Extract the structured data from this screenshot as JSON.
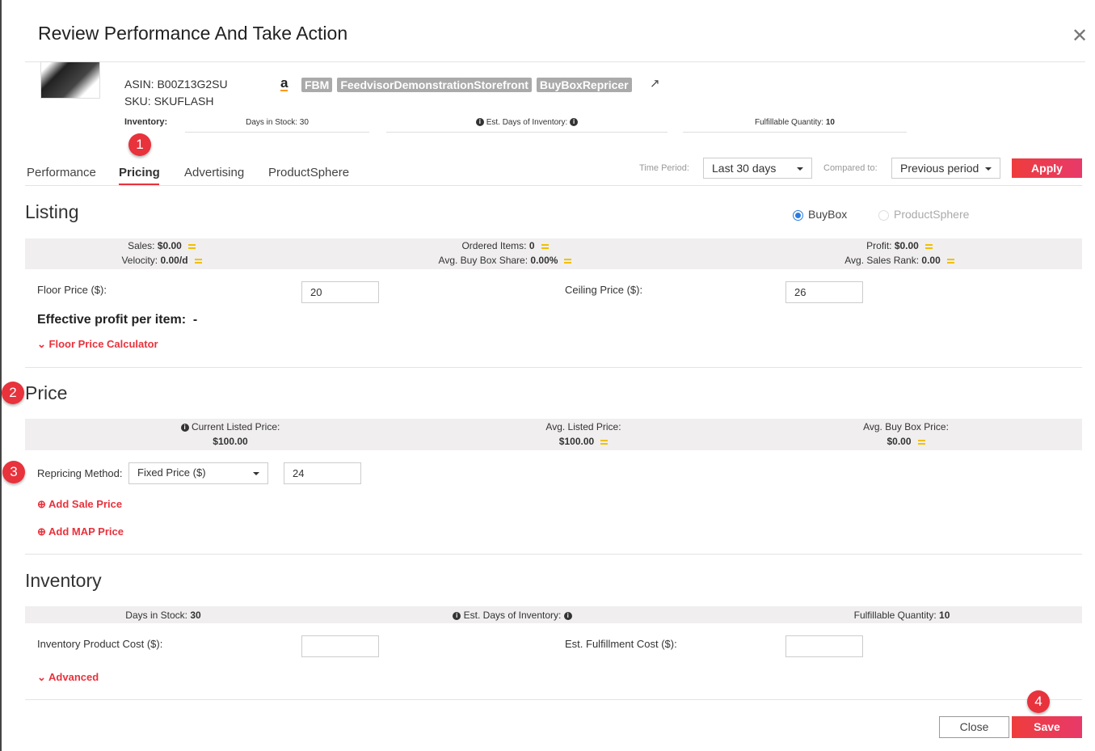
{
  "dialog": {
    "title": "Review Performance And Take Action"
  },
  "product": {
    "asin": "ASIN: B00Z13G2SU",
    "sku": "SKU: SKUFLASH",
    "badges": [
      "FBM",
      "FeedvisorDemonstrationStorefront",
      "BuyBoxRepricer"
    ],
    "amazon_glyph": "a"
  },
  "header_inventory": {
    "label": "Inventory:",
    "days_in_stock": "Days in Stock: 30",
    "est_days": "Est. Days of Inventory:",
    "fulfillable": "Fulfillable Quantity:",
    "fulfillable_value": "10"
  },
  "steps": [
    "1",
    "2",
    "3",
    "4"
  ],
  "tabs": [
    {
      "label": "Performance"
    },
    {
      "label": "Pricing",
      "active": true
    },
    {
      "label": "Advertising"
    },
    {
      "label": "ProductSphere"
    }
  ],
  "filters": {
    "time_period_label": "Time Period:",
    "time_period_value": "Last 30 days",
    "compared_label": "Compared to:",
    "compared_value": "Previous period",
    "apply": "Apply"
  },
  "listing": {
    "title": "Listing",
    "radio_options": [
      {
        "label": "BuyBox",
        "selected": true
      },
      {
        "label": "ProductSphere",
        "selected": false
      }
    ],
    "stats": [
      {
        "label": "Sales:",
        "value": "$0.00"
      },
      {
        "label": "Ordered Items:",
        "value": "0"
      },
      {
        "label": "Profit:",
        "value": "$0.00"
      },
      {
        "label": "Velocity:",
        "value": "0.00/d"
      },
      {
        "label": "Avg. Buy Box Share:",
        "value": "0.00%"
      },
      {
        "label": "Avg. Sales Rank:",
        "value": "0.00"
      }
    ],
    "floor_label": "Floor Price ($):",
    "floor_value": "20",
    "ceiling_label": "Ceiling Price ($):",
    "ceiling_value": "26",
    "effective_profit": "Effective profit per item:  -",
    "calculator": "Floor Price Calculator"
  },
  "price": {
    "title": "Price",
    "stats": [
      {
        "label": "Current Listed Price:",
        "value": "$100.00"
      },
      {
        "label": "Avg. Listed Price:",
        "value": "$100.00"
      },
      {
        "label": "Avg. Buy Box Price:",
        "value": "$0.00"
      }
    ],
    "method_label": "Repricing Method:",
    "method_value": "Fixed Price ($)",
    "method_amount": "24",
    "add_sale": "Add Sale Price",
    "add_map": "Add MAP Price"
  },
  "inventory": {
    "title": "Inventory",
    "days_in_stock_label": "Days in Stock:",
    "days_in_stock": "30",
    "est_days": "Est. Days of Inventory:",
    "fulfillable_label": "Fulfillable Quantity:",
    "fulfillable": "10",
    "product_cost_label": "Inventory Product Cost ($):",
    "product_cost": "",
    "fulfillment_cost_label": "Est. Fulfillment Cost ($):",
    "fulfillment_cost": "",
    "advanced": "Advanced"
  },
  "footer": {
    "close": "Close",
    "save": "Save"
  },
  "colors": {
    "accent": "#e8323c",
    "equal_indicator": "#f0c000",
    "radio": "#2a7ae2"
  }
}
